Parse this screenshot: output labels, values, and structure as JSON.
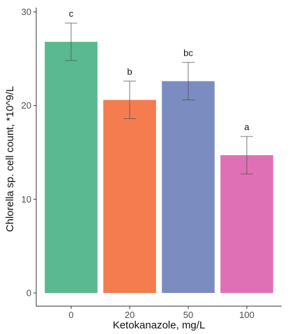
{
  "chart_data": {
    "type": "bar",
    "title": "",
    "xlabel": "Ketokanazole, mg/L",
    "ylabel": "Chlorella sp. cell count, *10^9/L",
    "categories": [
      "0",
      "20",
      "50",
      "100"
    ],
    "values": [
      26.8,
      20.6,
      22.6,
      14.7
    ],
    "errors": [
      2.0,
      2.0,
      2.0,
      2.0
    ],
    "significance_labels": [
      "c",
      "b",
      "bc",
      "a"
    ],
    "colors": [
      "#5ab990",
      "#f47c4f",
      "#7a8cc0",
      "#e070b5"
    ],
    "ylim": [
      0,
      30
    ],
    "yticks": [
      0,
      10,
      20,
      30
    ],
    "grid": false,
    "legend": "none"
  }
}
